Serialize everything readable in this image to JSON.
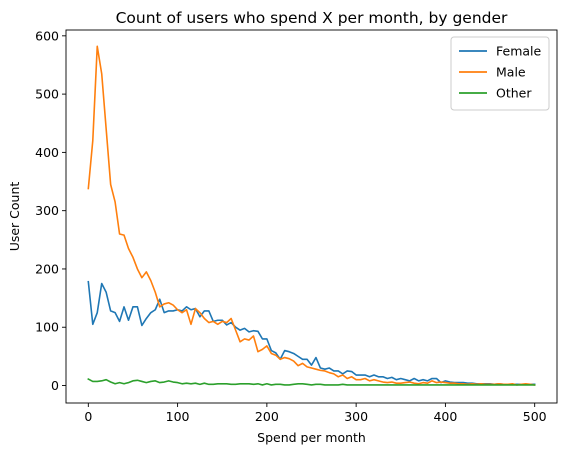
{
  "chart_data": {
    "type": "line",
    "title": "Count of users who spend X per month, by gender",
    "xlabel": "Spend per month",
    "ylabel": "User Count",
    "xlim": [
      -25,
      525
    ],
    "ylim": [
      -30,
      610
    ],
    "xticks": [
      0,
      100,
      200,
      300,
      400,
      500
    ],
    "yticks": [
      0,
      100,
      200,
      300,
      400,
      500,
      600
    ],
    "grid": false,
    "legend_position": "top-right",
    "x": [
      0,
      5,
      10,
      15,
      20,
      25,
      30,
      35,
      40,
      45,
      50,
      55,
      60,
      65,
      70,
      75,
      80,
      85,
      90,
      95,
      100,
      105,
      110,
      115,
      120,
      125,
      130,
      135,
      140,
      145,
      150,
      155,
      160,
      165,
      170,
      175,
      180,
      185,
      190,
      195,
      200,
      205,
      210,
      215,
      220,
      225,
      230,
      235,
      240,
      245,
      250,
      255,
      260,
      265,
      270,
      275,
      280,
      285,
      290,
      295,
      300,
      305,
      310,
      315,
      320,
      325,
      330,
      335,
      340,
      345,
      350,
      355,
      360,
      365,
      370,
      375,
      380,
      385,
      390,
      395,
      400,
      405,
      410,
      415,
      420,
      425,
      430,
      435,
      440,
      445,
      450,
      455,
      460,
      465,
      470,
      475,
      480,
      485,
      490,
      495,
      500
    ],
    "series": [
      {
        "name": "Female",
        "color": "#1f77b4",
        "values": [
          178,
          105,
          125,
          175,
          160,
          128,
          125,
          110,
          135,
          112,
          135,
          135,
          103,
          115,
          125,
          130,
          148,
          125,
          128,
          128,
          130,
          128,
          135,
          130,
          132,
          118,
          128,
          128,
          110,
          112,
          112,
          104,
          108,
          100,
          95,
          98,
          92,
          94,
          93,
          80,
          80,
          60,
          56,
          45,
          60,
          58,
          55,
          50,
          45,
          45,
          35,
          48,
          30,
          28,
          30,
          25,
          25,
          20,
          25,
          24,
          18,
          18,
          18,
          15,
          18,
          15,
          15,
          12,
          14,
          10,
          12,
          10,
          8,
          12,
          8,
          10,
          8,
          12,
          12,
          5,
          8,
          6,
          5,
          5,
          5,
          4,
          4,
          3,
          3,
          3,
          3,
          2,
          3,
          2,
          2,
          2,
          2,
          2,
          2,
          2,
          2
        ]
      },
      {
        "name": "Male",
        "color": "#ff7f0e",
        "values": [
          338,
          420,
          582,
          535,
          440,
          345,
          315,
          260,
          258,
          235,
          220,
          200,
          185,
          195,
          180,
          160,
          135,
          140,
          142,
          138,
          130,
          125,
          130,
          105,
          132,
          125,
          115,
          108,
          110,
          105,
          110,
          108,
          115,
          95,
          75,
          80,
          78,
          85,
          58,
          62,
          68,
          55,
          52,
          45,
          48,
          46,
          42,
          34,
          38,
          32,
          30,
          28,
          26,
          25,
          22,
          20,
          15,
          18,
          12,
          15,
          10,
          10,
          12,
          8,
          10,
          8,
          6,
          5,
          6,
          4,
          4,
          5,
          6,
          4,
          3,
          5,
          4,
          8,
          5,
          6,
          5,
          4,
          4,
          3,
          3,
          2,
          3,
          2,
          3,
          2,
          2,
          2,
          3,
          2,
          2,
          3,
          1,
          2,
          3,
          2,
          1
        ]
      },
      {
        "name": "Other",
        "color": "#2ca02c",
        "values": [
          11,
          7,
          7,
          8,
          10,
          6,
          3,
          5,
          3,
          5,
          8,
          9,
          7,
          5,
          7,
          8,
          5,
          6,
          8,
          6,
          5,
          3,
          4,
          3,
          4,
          2,
          4,
          2,
          2,
          3,
          3,
          3,
          2,
          2,
          3,
          3,
          3,
          2,
          3,
          1,
          3,
          1,
          2,
          2,
          1,
          1,
          2,
          3,
          3,
          2,
          1,
          2,
          2,
          1,
          1,
          1,
          1,
          2,
          1,
          1,
          1,
          1,
          1,
          1,
          1,
          1,
          1,
          1,
          1,
          1,
          1,
          1,
          1,
          1,
          1,
          1,
          1,
          1,
          1,
          1,
          1,
          1,
          1,
          1,
          1,
          1,
          1,
          1,
          1,
          1,
          1,
          1,
          1,
          1,
          1,
          1,
          1,
          1,
          1,
          1,
          1
        ]
      }
    ]
  }
}
